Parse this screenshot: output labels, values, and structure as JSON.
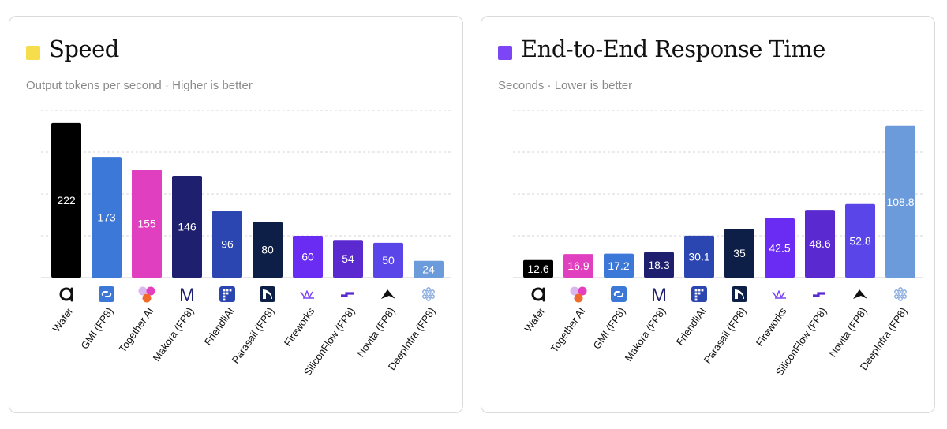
{
  "colors": {
    "speed_swatch": "#f5dd4b",
    "latency_swatch": "#7c45f5",
    "wafer": "#000000",
    "gmi": "#3c78d8",
    "together": "#e040bf",
    "makora": "#1e1f6e",
    "friendli": "#2b46b0",
    "parasail": "#0d1f46",
    "fireworks": "#6a2cf2",
    "siliconflow": "#5a2ad0",
    "novita": "#5a45e8",
    "deepinfra": "#6c9bdc"
  },
  "chart_data": [
    {
      "type": "bar",
      "title": "Speed",
      "subtitle": "Output tokens per second · Higher is better",
      "categories": [
        "Wafer",
        "GMI (FP8)",
        "Together AI",
        "Makora (FP8)",
        "FriendliAI",
        "Parasail (FP8)",
        "Fireworks",
        "SiliconFlow (FP8)",
        "Novita (FP8)",
        "DeepInfra (FP8)"
      ],
      "values": [
        222,
        173,
        155,
        146,
        96,
        80,
        60,
        54,
        50,
        24
      ],
      "value_labels": [
        "222",
        "173",
        "155",
        "146",
        "96",
        "80",
        "60",
        "54",
        "50",
        "24"
      ],
      "icons": [
        "wafer-icon",
        "gmi-icon",
        "together-icon",
        "makora-icon",
        "friendli-icon",
        "parasail-icon",
        "fireworks-icon",
        "siliconflow-icon",
        "novita-icon",
        "deepinfra-icon"
      ],
      "color_keys": [
        "wafer",
        "gmi",
        "together",
        "makora",
        "friendli",
        "parasail",
        "fireworks",
        "siliconflow",
        "novita",
        "deepinfra"
      ],
      "ylim": [
        0,
        240
      ],
      "grid": true
    },
    {
      "type": "bar",
      "title": "End-to-End Response Time",
      "subtitle": "Seconds · Lower is better",
      "categories": [
        "Wafer",
        "Together AI",
        "GMI (FP8)",
        "Makora (FP8)",
        "FriendliAI",
        "Parasail (FP8)",
        "Fireworks",
        "SiliconFlow (FP8)",
        "Novita (FP8)",
        "DeepInfra (FP8)"
      ],
      "values": [
        12.6,
        16.9,
        17.2,
        18.3,
        30.1,
        35,
        42.5,
        48.6,
        52.8,
        108.8
      ],
      "value_labels": [
        "12.6",
        "16.9",
        "17.2",
        "18.3",
        "30.1",
        "35",
        "42.5",
        "48.6",
        "52.8",
        "108.8"
      ],
      "icons": [
        "wafer-icon",
        "together-icon",
        "gmi-icon",
        "makora-icon",
        "friendli-icon",
        "parasail-icon",
        "fireworks-icon",
        "siliconflow-icon",
        "novita-icon",
        "deepinfra-icon"
      ],
      "color_keys": [
        "wafer",
        "together",
        "gmi",
        "makora",
        "friendli",
        "parasail",
        "fireworks",
        "siliconflow",
        "novita",
        "deepinfra"
      ],
      "ylim": [
        0,
        120
      ],
      "grid": true
    }
  ]
}
